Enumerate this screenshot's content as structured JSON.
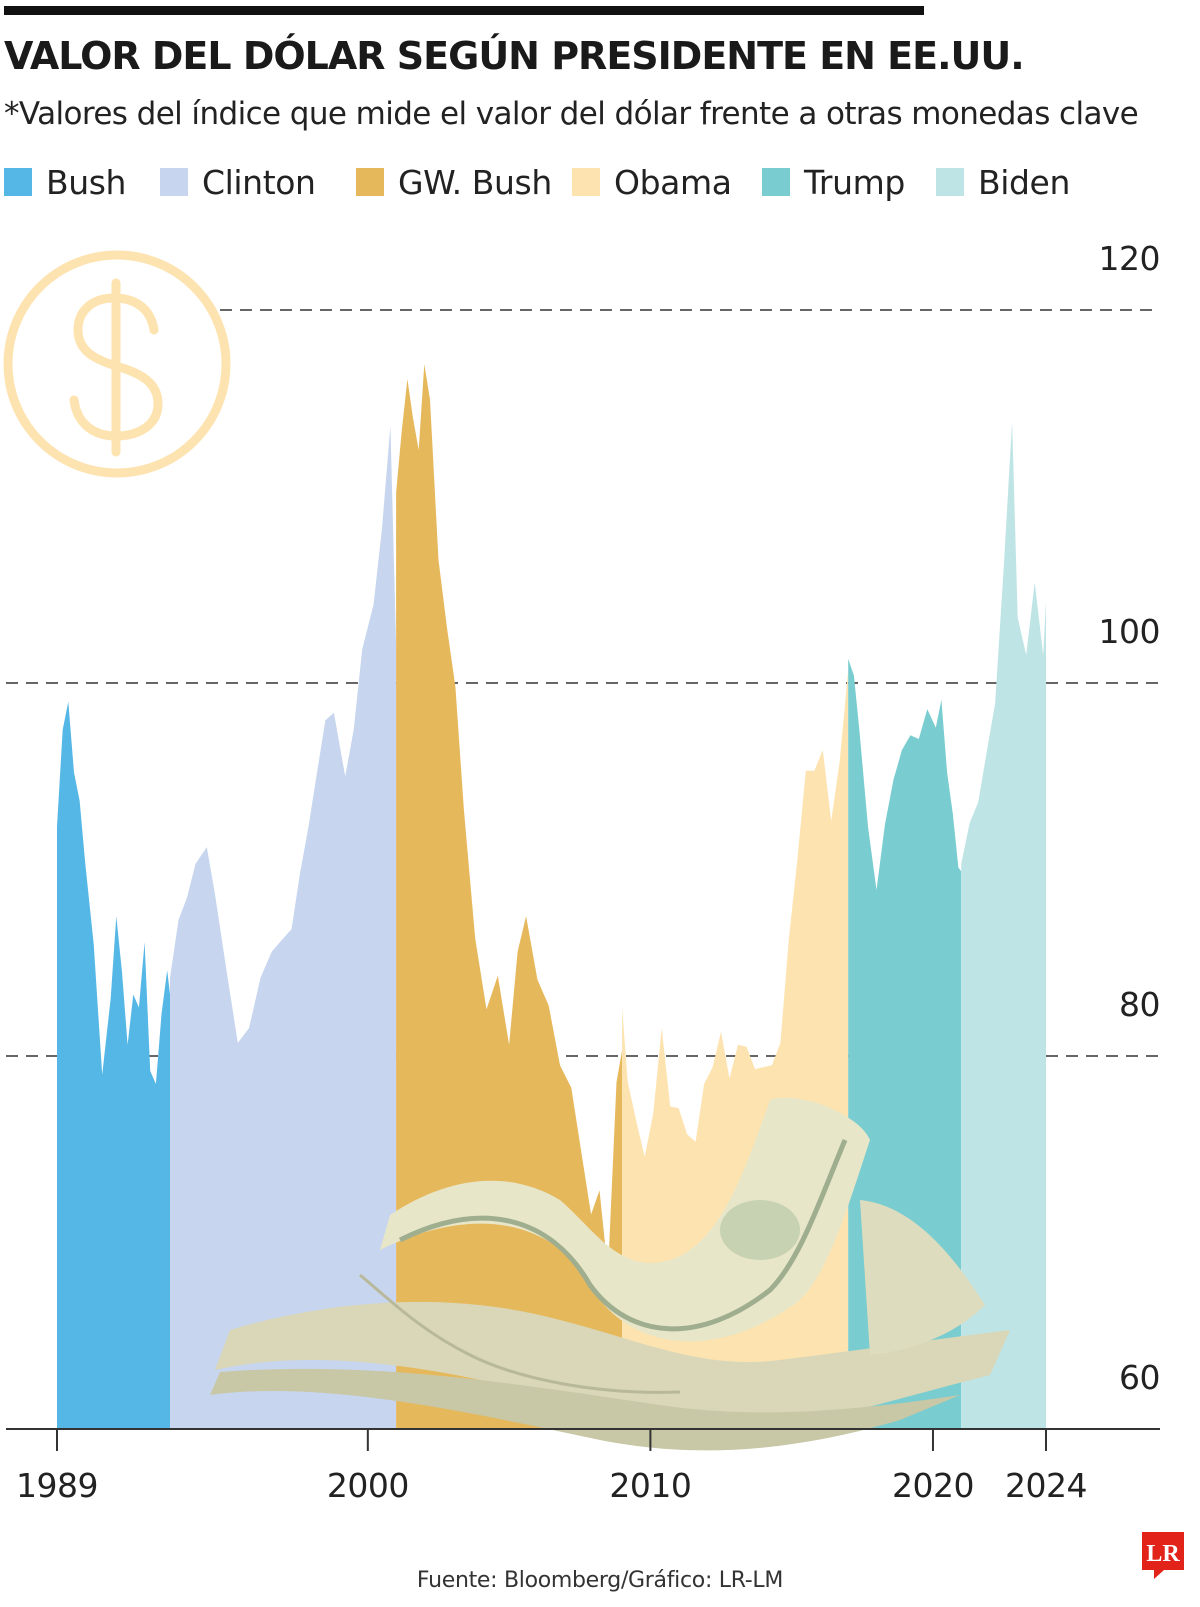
{
  "title": "VALOR DEL DÓLAR SEGÚN PRESIDENTE EN EE.UU.",
  "subtitle": "*Valores del índice que mide el valor del dólar frente a otras monedas clave",
  "source": "Fuente: Bloomberg/Gráfico: LR-LM",
  "logo": "LR",
  "legend": [
    {
      "label": "Bush",
      "color": "#55b7e6"
    },
    {
      "label": "Clinton",
      "color": "#c7d6ee"
    },
    {
      "label": "GW. Bush",
      "color": "#e6b85c"
    },
    {
      "label": "Obama",
      "color": "#fde3b0"
    },
    {
      "label": "Trump",
      "color": "#79cccf"
    },
    {
      "label": "Biden",
      "color": "#bfe4e6"
    }
  ],
  "decorations": {
    "circle_icon": "dollar-sign-icon",
    "circle_color": "#fde3b0",
    "bills_image": "dollar-bills-illustration"
  },
  "chart_data": {
    "type": "area",
    "title": "VALOR DEL DÓLAR SEGÚN PRESIDENTE EN EE.UU.",
    "ylim": [
      60,
      120
    ],
    "yticks": [
      60,
      80,
      100,
      120
    ],
    "xticks": [
      "1989",
      "2000",
      "2010",
      "2020",
      "2024"
    ],
    "xlim": [
      1989,
      2024
    ],
    "grid_dashed_at": [
      80,
      100,
      120
    ],
    "legend_position": "top",
    "series": [
      {
        "name": "Bush",
        "color": "#55b7e6",
        "x": [
          1989.0,
          1989.2,
          1989.4,
          1989.6,
          1989.8,
          1990.0,
          1990.3,
          1990.6,
          1990.9,
          1991.1,
          1991.3,
          1991.5,
          1991.7,
          1991.9,
          1992.1,
          1992.3,
          1992.5,
          1992.7,
          1992.9,
          1993.0
        ],
        "y": [
          92.3,
          97.5,
          99.0,
          95.2,
          93.7,
          90.3,
          86.0,
          79.0,
          83.1,
          87.5,
          84.5,
          80.6,
          83.3,
          82.6,
          86.1,
          79.2,
          78.5,
          82.3,
          84.6,
          83.3
        ]
      },
      {
        "name": "Clinton",
        "color": "#c7d6ee",
        "x": [
          1993.0,
          1993.3,
          1993.6,
          1993.9,
          1994.3,
          1994.6,
          1995.0,
          1995.4,
          1995.8,
          1996.2,
          1996.6,
          1997.0,
          1997.3,
          1997.6,
          1997.9,
          1998.2,
          1998.5,
          1998.8,
          1999.2,
          1999.5,
          1999.8,
          2000.2,
          2000.5,
          2000.8,
          2001.0
        ],
        "y": [
          84.2,
          87.3,
          88.5,
          90.3,
          91.2,
          88.6,
          84.6,
          80.7,
          81.5,
          84.2,
          85.6,
          86.3,
          86.8,
          89.8,
          92.3,
          95.2,
          98.0,
          98.4,
          95.0,
          97.5,
          101.8,
          104.2,
          108.3,
          113.8,
          102.0
        ]
      },
      {
        "name": "GW. Bush",
        "color": "#e6b85c",
        "x": [
          2001.0,
          2001.2,
          2001.4,
          2001.6,
          2001.8,
          2002.0,
          2002.2,
          2002.5,
          2002.8,
          2003.1,
          2003.4,
          2003.8,
          2004.2,
          2004.6,
          2005.0,
          2005.3,
          2005.6,
          2006.0,
          2006.4,
          2006.8,
          2007.2,
          2007.6,
          2007.9,
          2008.2,
          2008.5,
          2008.8,
          2009.0
        ],
        "y": [
          110.2,
          113.5,
          116.3,
          114.2,
          112.5,
          117.1,
          115.2,
          106.6,
          103.0,
          99.8,
          93.2,
          86.3,
          82.5,
          84.3,
          80.6,
          85.6,
          87.5,
          84.1,
          82.7,
          79.5,
          78.3,
          74.4,
          71.5,
          72.8,
          68.4,
          78.6,
          80.3
        ]
      },
      {
        "name": "Obama",
        "color": "#fde3b0",
        "x": [
          2009.0,
          2009.2,
          2009.5,
          2009.8,
          2010.1,
          2010.4,
          2010.7,
          2011.0,
          2011.3,
          2011.6,
          2011.9,
          2012.2,
          2012.5,
          2012.8,
          2013.1,
          2013.4,
          2013.7,
          2014.0,
          2014.3,
          2014.6,
          2014.9,
          2015.2,
          2015.5,
          2015.8,
          2016.1,
          2016.4,
          2016.7,
          2017.0
        ],
        "y": [
          82.6,
          78.6,
          76.5,
          74.6,
          76.9,
          81.5,
          77.3,
          77.2,
          75.8,
          75.4,
          78.5,
          79.4,
          81.3,
          78.8,
          80.6,
          80.5,
          79.3,
          79.4,
          79.5,
          80.7,
          86.3,
          90.5,
          95.3,
          95.3,
          96.4,
          92.6,
          95.8,
          100.7
        ]
      },
      {
        "name": "Trump",
        "color": "#79cccf",
        "x": [
          2017.0,
          2017.2,
          2017.4,
          2017.7,
          2018.0,
          2018.3,
          2018.6,
          2018.9,
          2019.2,
          2019.5,
          2019.8,
          2020.1,
          2020.3,
          2020.5,
          2020.7,
          2020.9,
          2021.0
        ],
        "y": [
          101.3,
          100.4,
          97.4,
          92.3,
          88.9,
          92.4,
          94.8,
          96.4,
          97.2,
          97.0,
          98.6,
          97.6,
          99.1,
          95.2,
          93.0,
          90.1,
          89.9
        ]
      },
      {
        "name": "Biden",
        "color": "#bfe4e6",
        "x": [
          2021.0,
          2021.3,
          2021.6,
          2021.9,
          2022.2,
          2022.5,
          2022.8,
          2023.0,
          2023.3,
          2023.6,
          2023.9,
          2024.0
        ],
        "y": [
          90.3,
          92.5,
          93.6,
          96.3,
          98.9,
          106.1,
          114.0,
          103.5,
          101.5,
          105.4,
          101.5,
          104.4
        ]
      }
    ]
  }
}
